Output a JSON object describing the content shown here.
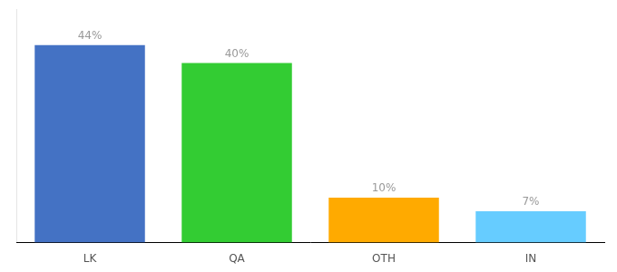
{
  "chart_data": {
    "type": "bar",
    "categories": [
      "LK",
      "QA",
      "OTH",
      "IN"
    ],
    "values": [
      44,
      40,
      10,
      7
    ],
    "colors": [
      "#4472c4",
      "#33cc33",
      "#ffaa00",
      "#66ccff"
    ],
    "value_labels": [
      "44%",
      "40%",
      "10%",
      "7%"
    ],
    "data_labels": true,
    "ylim": [
      0,
      52
    ],
    "grid": false,
    "tick_labels": "x"
  }
}
